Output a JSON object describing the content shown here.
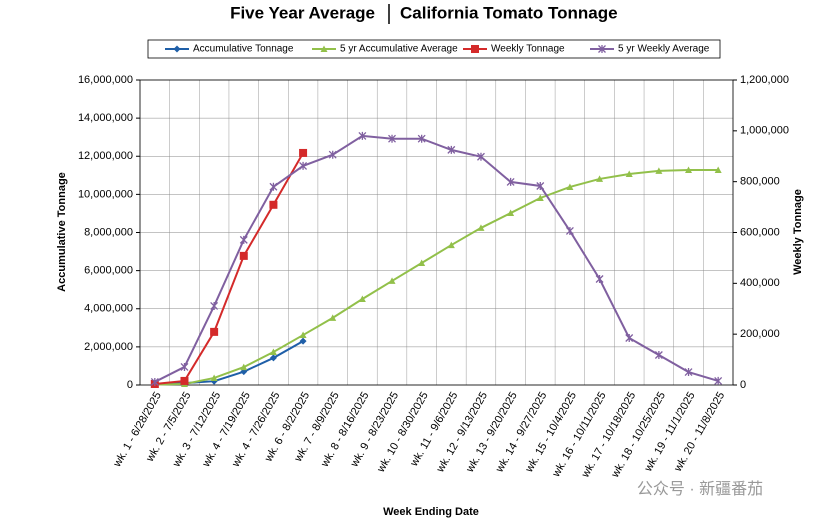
{
  "chart_data": {
    "type": "line",
    "title": "Five Year Average",
    "subtitle": "California Tomato Tonnage",
    "x_label": "Week Ending Date",
    "y_label": "Accumulative Tonnage",
    "y2_label": "Weekly Tonnage",
    "watermark": "公众号 · 新疆番茄",
    "categories": [
      "wk. 1 - 6/28/2025",
      "wk. 2 - 7/5/2025",
      "wk. 3 - 7/12/2025",
      "wk. 4 - 7/19/2025",
      "wk. 4 - 7/26/2025",
      "wk. 6 - 8/2/2025",
      "wk. 7 - 8/9/2025",
      "wk. 8 - 8/16/2025",
      "wk. 9 - 8/23/2025",
      "wk. 10 - 8/30/2025",
      "wk. 11 - 9/6/2025",
      "wk. 12 - 9/13/2025",
      "wk. 13 - 9/20/2025",
      "wk. 14 - 9/27/2025",
      "wk. 15 - 10/4/2025",
      "wk. 16 - 10/11/2025",
      "wk. 17 - 10/18/2025",
      "wk. 18 - 10/25/2025",
      "wk. 19 - 11/1/2025",
      "wk. 20 - 11/8/2025"
    ],
    "series": [
      {
        "name": "Accumulative Tonnage",
        "color": "#1f5fa8",
        "marker": "diamond",
        "axis": "y",
        "values": [
          50000,
          100000,
          200000,
          700000,
          1420000,
          2300000,
          null,
          null,
          null,
          null,
          null,
          null,
          null,
          null,
          null,
          null,
          null,
          null,
          null,
          null
        ]
      },
      {
        "name": "5 yr Accumulative Average",
        "color": "#92c04a",
        "marker": "triangle",
        "axis": "y",
        "values": [
          20000,
          50000,
          370000,
          940000,
          1730000,
          2620000,
          3520000,
          4510000,
          5460000,
          6400000,
          7340000,
          8240000,
          9020000,
          9810000,
          10390000,
          10810000,
          11070000,
          11230000,
          11280000,
          11280000
        ]
      },
      {
        "name": "Weekly Tonnage",
        "color": "#d42a2a",
        "marker": "square",
        "axis": "y2",
        "values": [
          4000,
          16000,
          209000,
          508000,
          709000,
          913000,
          null,
          null,
          null,
          null,
          null,
          null,
          null,
          null,
          null,
          null,
          null,
          null,
          null,
          null
        ]
      },
      {
        "name": "5 yr Weekly Average",
        "color": "#8060a0",
        "marker": "star",
        "axis": "y2",
        "values": [
          12000,
          71000,
          311000,
          571000,
          780000,
          862000,
          906000,
          980000,
          969000,
          969000,
          925000,
          898000,
          799000,
          783000,
          606000,
          417000,
          185000,
          118000,
          51000,
          16000
        ]
      }
    ],
    "ylim": [
      0,
      16000000
    ],
    "yticks": [
      0,
      {
        "value": 2000000,
        "label": "2,000,000"
      },
      {
        "value": 4000000,
        "label": "4,000,000"
      },
      {
        "value": 6000000,
        "label": "6,000,000"
      },
      {
        "value": 8000000,
        "label": "8,000,000"
      },
      {
        "value": 10000000,
        "label": "10,000,000"
      },
      {
        "value": 12000000,
        "label": "12,000,000"
      },
      {
        "value": 14000000,
        "label": "14,000,000"
      },
      {
        "value": 16000000,
        "label": "16,000,000"
      }
    ],
    "y2lim": [
      0,
      1200000
    ],
    "y2ticks": [
      0,
      {
        "value": 200000,
        "label": "200,000"
      },
      {
        "value": 400000,
        "label": "400,000"
      },
      {
        "value": 600000,
        "label": "600,000"
      },
      {
        "value": 800000,
        "label": "800,000"
      },
      {
        "value": 1000000,
        "label": "1,000,000"
      },
      {
        "value": 1200000,
        "label": "1,200,000"
      }
    ],
    "grid": true,
    "legend": "top"
  }
}
